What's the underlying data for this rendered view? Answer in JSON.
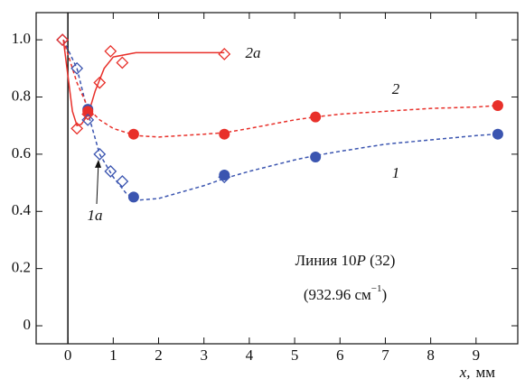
{
  "chart_data": {
    "type": "scatter",
    "xlim": [
      -0.7,
      9.92
    ],
    "ylim": [
      -0.063,
      1.095
    ],
    "xticks": [
      0,
      1,
      2,
      3,
      4,
      5,
      6,
      7,
      8,
      9
    ],
    "yticks": [
      0,
      0.2,
      0.4,
      0.6,
      0.8,
      {
        "value": 1,
        "label": "1.0"
      }
    ],
    "xlabel": [
      "x,",
      "мм"
    ],
    "annotation": {
      "line1": [
        "Линия 10",
        "P",
        " (32)"
      ],
      "line2": [
        "(932.96 см",
        "−1",
        ")"
      ]
    },
    "series": [
      {
        "name": "1",
        "color": "#3b55b0",
        "marker": "circle",
        "x": [
          0.44,
          1.45,
          3.45,
          5.46,
          9.48
        ],
        "values": [
          0.757,
          0.45,
          0.527,
          0.59,
          0.67
        ]
      },
      {
        "name": "2",
        "color": "#e8302a",
        "marker": "circle",
        "x": [
          0.44,
          1.45,
          3.45,
          5.46,
          9.48
        ],
        "values": [
          0.75,
          0.67,
          0.67,
          0.73,
          0.77
        ]
      },
      {
        "name": "1a",
        "color": "#3b55b0",
        "marker": "diamond",
        "x": [
          -0.12,
          0.2,
          0.44,
          0.7,
          0.94,
          1.2,
          3.45
        ],
        "values": [
          1.0,
          0.9,
          0.72,
          0.6,
          0.54,
          0.505,
          0.52
        ]
      },
      {
        "name": "2a",
        "color": "#e8302a",
        "marker": "diamond",
        "x": [
          -0.12,
          0.2,
          0.44,
          0.7,
          0.94,
          1.2,
          3.45
        ],
        "values": [
          1.0,
          0.69,
          0.74,
          0.85,
          0.96,
          0.92,
          0.95
        ]
      }
    ],
    "fits": [
      {
        "color": "#3b55b0",
        "dashed": true,
        "x": [
          -0.1,
          0.2,
          0.45,
          0.7,
          1.0,
          1.3,
          1.6,
          2,
          3,
          3.45,
          4,
          5,
          5.45,
          6,
          7,
          8,
          9,
          9.45
        ],
        "y": [
          1.0,
          0.9,
          0.74,
          0.6,
          0.52,
          0.46,
          0.44,
          0.445,
          0.49,
          0.515,
          0.54,
          0.58,
          0.595,
          0.61,
          0.635,
          0.65,
          0.665,
          0.67
        ]
      },
      {
        "color": "#e8302a",
        "dashed": true,
        "x": [
          -0.1,
          0.2,
          0.45,
          0.7,
          1,
          1.5,
          2,
          3,
          3.45,
          4,
          5,
          5.45,
          6,
          7,
          8,
          9,
          9.45
        ],
        "y": [
          1.0,
          0.85,
          0.76,
          0.72,
          0.69,
          0.665,
          0.66,
          0.67,
          0.675,
          0.69,
          0.72,
          0.73,
          0.74,
          0.75,
          0.76,
          0.765,
          0.77
        ]
      },
      {
        "color": "#e8302a",
        "dashed": false,
        "x": [
          -0.1,
          0.1,
          0.2,
          0.3,
          0.45,
          0.6,
          0.8,
          1.0,
          1.5,
          2,
          3,
          3.45
        ],
        "y": [
          1.0,
          0.75,
          0.7,
          0.705,
          0.74,
          0.82,
          0.9,
          0.94,
          0.955,
          0.955,
          0.955,
          0.955
        ]
      }
    ]
  }
}
